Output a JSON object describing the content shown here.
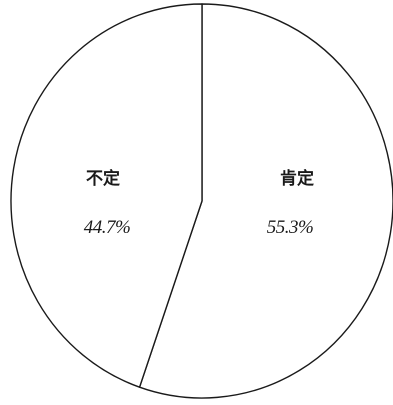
{
  "chart_data": {
    "type": "pie",
    "title": "",
    "start_angle_deg": 0,
    "direction": "clockwise",
    "slices": [
      {
        "label": "肯定",
        "value": 55.3,
        "value_label": "55.3%"
      },
      {
        "label": "不定",
        "value": 44.7,
        "value_label": "44.7%"
      }
    ],
    "legend": "none",
    "colors": {
      "fill": "#ffffff",
      "stroke": "#1a1a1a"
    }
  }
}
